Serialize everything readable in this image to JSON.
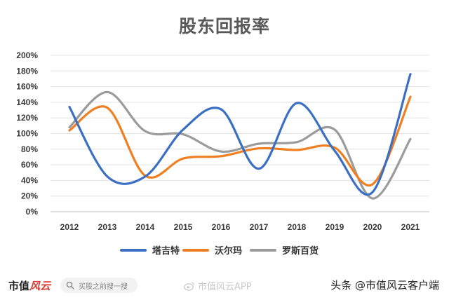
{
  "chart_data": {
    "type": "line",
    "title": "股东回报率",
    "categories": [
      "2012",
      "2013",
      "2014",
      "2015",
      "2016",
      "2017",
      "2018",
      "2019",
      "2020",
      "2021"
    ],
    "y_ticks": [
      "0%",
      "20%",
      "40%",
      "60%",
      "80%",
      "100%",
      "120%",
      "140%",
      "160%",
      "180%",
      "200%"
    ],
    "ylim": [
      0,
      200
    ],
    "y_unit": "%",
    "grid": "horizontal",
    "legend_position": "bottom",
    "smooth": true,
    "series": [
      {
        "name": "塔吉特",
        "color": "#3a6fc4",
        "values": [
          134,
          45,
          45,
          105,
          131,
          55,
          139,
          78,
          25,
          176
        ]
      },
      {
        "name": "沃尔玛",
        "color": "#f07f21",
        "values": [
          104,
          133,
          46,
          68,
          71,
          81,
          79,
          82,
          35,
          147
        ]
      },
      {
        "name": "罗斯百货",
        "color": "#9b9b9b",
        "values": [
          108,
          153,
          103,
          99,
          77,
          87,
          89,
          105,
          17,
          93
        ]
      }
    ]
  },
  "footer": {
    "brand_main": "市值",
    "brand_accent": "风云",
    "search_placeholder": "买股之前搜一搜",
    "app_watermark": "市值风云APP",
    "source_credit": "头条 @市值风云客户端"
  },
  "icons": {
    "search": "search-icon",
    "weibo": "weibo-icon"
  }
}
